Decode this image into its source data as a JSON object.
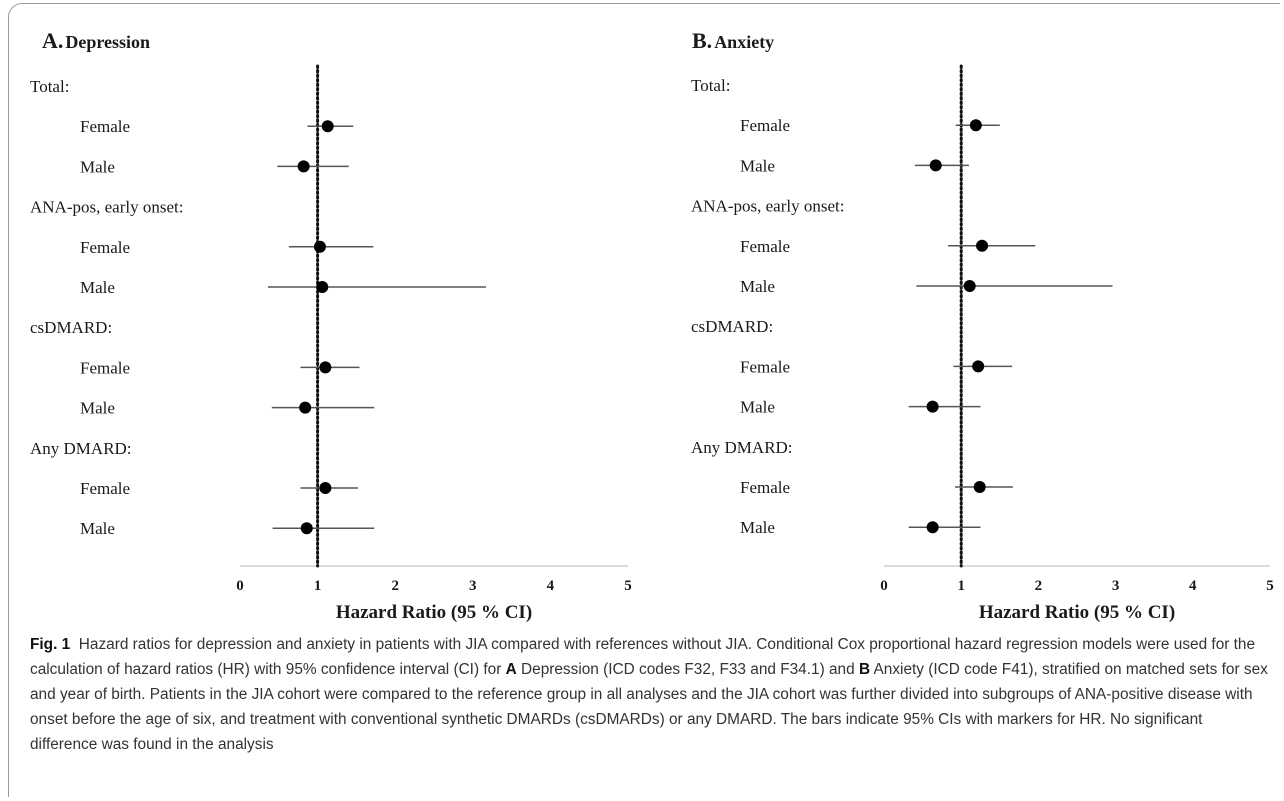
{
  "chart_data": [
    {
      "type": "forest",
      "panel_letter": "A.",
      "panel_title": "Depression",
      "xlabel": "Hazard Ratio (95 % CI)",
      "xlim": [
        0,
        5
      ],
      "x_ticks": [
        "0",
        "1",
        "2",
        "3",
        "4",
        "5"
      ],
      "reference_line": 1,
      "groups": [
        {
          "label": "Total:",
          "rows": [
            {
              "label": "Female",
              "hr": 1.13,
              "lo": 0.87,
              "hi": 1.46
            },
            {
              "label": "Male",
              "hr": 0.82,
              "lo": 0.48,
              "hi": 1.4
            }
          ]
        },
        {
          "label": "ANA-pos, early onset:",
          "rows": [
            {
              "label": "Female",
              "hr": 1.03,
              "lo": 0.63,
              "hi": 1.72
            },
            {
              "label": "Male",
              "hr": 1.06,
              "lo": 0.36,
              "hi": 3.17
            }
          ]
        },
        {
          "label": "csDMARD:",
          "rows": [
            {
              "label": "Female",
              "hr": 1.1,
              "lo": 0.78,
              "hi": 1.54
            },
            {
              "label": "Male",
              "hr": 0.84,
              "lo": 0.41,
              "hi": 1.73
            }
          ]
        },
        {
          "label": "Any DMARD:",
          "rows": [
            {
              "label": "Female",
              "hr": 1.1,
              "lo": 0.78,
              "hi": 1.52
            },
            {
              "label": "Male",
              "hr": 0.86,
              "lo": 0.42,
              "hi": 1.73
            }
          ]
        }
      ]
    },
    {
      "type": "forest",
      "panel_letter": "B.",
      "panel_title": "Anxiety",
      "xlabel": "Hazard Ratio (95 % CI)",
      "xlim": [
        0,
        5
      ],
      "x_ticks": [
        "0",
        "1",
        "2",
        "3",
        "4",
        "5"
      ],
      "reference_line": 1,
      "groups": [
        {
          "label": "Total:",
          "rows": [
            {
              "label": "Female",
              "hr": 1.19,
              "lo": 0.93,
              "hi": 1.5
            },
            {
              "label": "Male",
              "hr": 0.67,
              "lo": 0.4,
              "hi": 1.1
            }
          ]
        },
        {
          "label": "ANA-pos, early onset:",
          "rows": [
            {
              "label": "Female",
              "hr": 1.27,
              "lo": 0.83,
              "hi": 1.96
            },
            {
              "label": "Male",
              "hr": 1.11,
              "lo": 0.42,
              "hi": 2.96
            }
          ]
        },
        {
          "label": "csDMARD:",
          "rows": [
            {
              "label": "Female",
              "hr": 1.22,
              "lo": 0.9,
              "hi": 1.66
            },
            {
              "label": "Male",
              "hr": 0.63,
              "lo": 0.32,
              "hi": 1.25
            }
          ]
        },
        {
          "label": "Any DMARD:",
          "rows": [
            {
              "label": "Female",
              "hr": 1.24,
              "lo": 0.92,
              "hi": 1.67
            },
            {
              "label": "Male",
              "hr": 0.63,
              "lo": 0.32,
              "hi": 1.25
            }
          ]
        }
      ]
    }
  ],
  "caption": {
    "fig_label": "Fig. 1",
    "p1": "Hazard ratios for depression and anxiety in patients with JIA compared with references without JIA. Conditional Cox proportional hazard regression models were used for the calculation of hazard ratios (HR) with 95% confidence interval (CI) for",
    "letter_a": "A",
    "p2": "Depression (ICD codes F32, F33 and F34.1) and",
    "letter_b": "B",
    "p3": "Anxiety (ICD code F41), stratified on matched sets for sex and year of birth. Patients in the JIA cohort were compared to the reference group in all analyses and the JIA cohort was further divided into subgroups of ANA-positive disease with onset before the age of six, and treatment with conventional synthetic DMARDs (csDMARDs) or any DMARD. The bars indicate 95% CIs with markers for HR. No significant difference was found in the analysis"
  }
}
